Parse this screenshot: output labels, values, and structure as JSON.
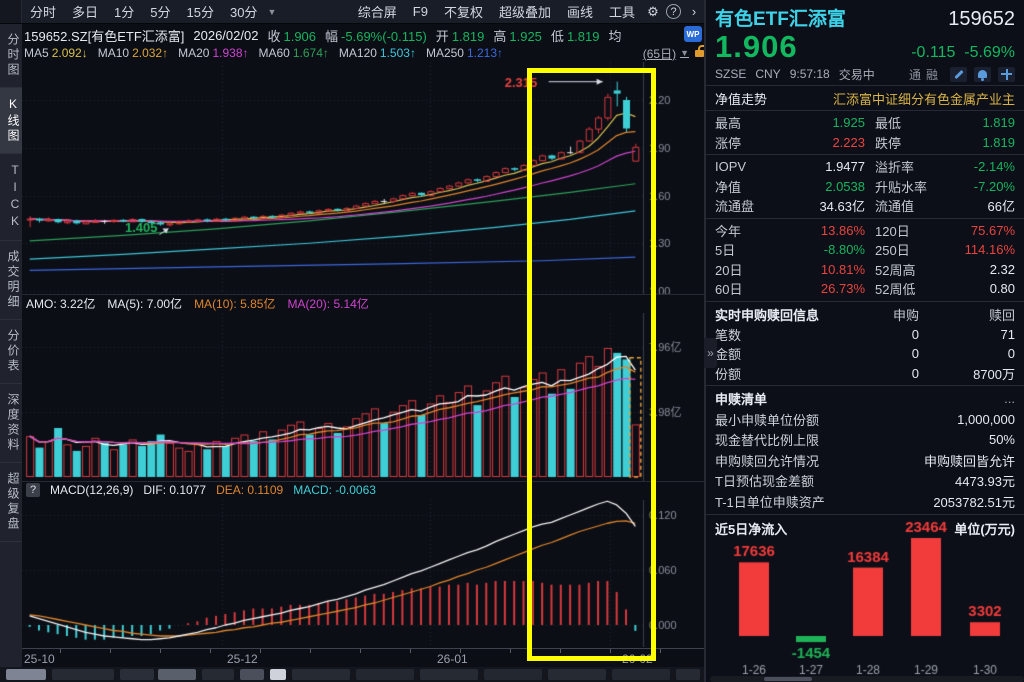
{
  "toolbar": {
    "tabs": [
      "分时",
      "多日",
      "1分",
      "5分",
      "15分",
      "30分"
    ],
    "dropdown_icon": "▼",
    "right_items": [
      "综合屏",
      "F9",
      "不复权",
      "超级叠加",
      "画线",
      "工具"
    ],
    "gear_icon": "⚙",
    "help_icon": "?",
    "expand_icon": "›"
  },
  "info_bar": {
    "symbol": "159652.SZ[有色ETF汇添富]",
    "date": "2026/02/02",
    "fields": [
      {
        "label": "收",
        "value": "1.906",
        "color": "grn"
      },
      {
        "label": "幅",
        "value": "-5.69%(-0.115)",
        "color": "grn"
      },
      {
        "label": "开",
        "value": "1.819",
        "color": "grn"
      },
      {
        "label": "高",
        "value": "1.925",
        "color": "grn"
      },
      {
        "label": "低",
        "value": "1.819",
        "color": "grn"
      },
      {
        "label": "均",
        "value": "",
        "color": "wht"
      }
    ],
    "wp_badge": "WP"
  },
  "ma_bar": {
    "items": [
      {
        "label": "MA5",
        "value": "2.092",
        "arrow": "↓",
        "color": "#d8c050"
      },
      {
        "label": "MA10",
        "value": "2.032",
        "arrow": "↑",
        "color": "#dca43c"
      },
      {
        "label": "MA20",
        "value": "1.938",
        "arrow": "↑",
        "color": "#d044d0"
      },
      {
        "label": "MA60",
        "value": "1.674",
        "arrow": "↑",
        "color": "#2fa05a"
      },
      {
        "label": "MA120",
        "value": "1.503",
        "arrow": "↑",
        "color": "#3fc6da"
      },
      {
        "label": "MA250",
        "value": "1.213",
        "arrow": "↑",
        "color": "#3e68e0"
      }
    ],
    "period": "(65日)",
    "period_caret": "▼"
  },
  "sidebar": {
    "items": [
      {
        "label": "分时图",
        "active": false
      },
      {
        "label": "K线图",
        "active": true
      },
      {
        "label": "TICK",
        "active": false
      },
      {
        "label": "成交明细",
        "active": false
      },
      {
        "label": "分价表",
        "active": false
      },
      {
        "label": "深度资料",
        "active": false
      },
      {
        "label": "超级复盘",
        "active": false
      }
    ]
  },
  "amo_bar": {
    "fields": [
      {
        "text": "AMO: 3.22亿",
        "color": "#e6e9f0"
      },
      {
        "text": "MA(5): 7.00亿",
        "color": "#e6e9f0"
      },
      {
        "text": "MA(10): 5.85亿",
        "color": "#e0852c"
      },
      {
        "text": "MA(20): 5.14亿",
        "color": "#cf44cf"
      }
    ]
  },
  "macd_bar": {
    "help_icon": "?",
    "fields": [
      {
        "text": "MACD(12,26,9)",
        "color": "#e6e9f0"
      },
      {
        "text": "DIF: 0.1077",
        "color": "#e6e9f0"
      },
      {
        "text": "DEA: 0.1109",
        "color": "#e0852c"
      },
      {
        "text": "MACD: -0.0063",
        "color": "#3ecfd6"
      }
    ]
  },
  "chart_data": [
    {
      "type": "candlestick",
      "name": "kline",
      "title": "159652.SZ 有色ETF汇添富 日K线",
      "y_ticks": [
        {
          "label": "2.20",
          "value": 2.2
        },
        {
          "label": "1.90",
          "value": 1.9
        },
        {
          "label": "1.60",
          "value": 1.6
        },
        {
          "label": "1.30",
          "value": 1.3
        },
        {
          "label": "1.00",
          "value": 1.0
        }
      ],
      "x_labels": [
        {
          "label": "25-10",
          "x": 2
        },
        {
          "label": "25-12",
          "x": 205
        },
        {
          "label": "26-01",
          "x": 415
        },
        {
          "label": "26-02",
          "x": 600
        }
      ],
      "v_grid_x": [
        200,
        408,
        588
      ],
      "annotations": [
        {
          "text": "2.315",
          "price": 2.315,
          "idx": 63,
          "color": "#e8433f",
          "dir": "right"
        },
        {
          "text": "1.405",
          "price": 1.405,
          "idx": 15,
          "color": "#20b45c",
          "dir": "upright"
        }
      ],
      "candles": [
        [
          1.45,
          1.47,
          1.4,
          1.455
        ],
        [
          1.455,
          1.46,
          1.43,
          1.443
        ],
        [
          1.443,
          1.462,
          1.438,
          1.452
        ],
        [
          1.452,
          1.455,
          1.425,
          1.432
        ],
        [
          1.432,
          1.45,
          1.42,
          1.442
        ],
        [
          1.442,
          1.448,
          1.418,
          1.425
        ],
        [
          1.425,
          1.445,
          1.42,
          1.437
        ],
        [
          1.437,
          1.452,
          1.43,
          1.44
        ],
        [
          1.44,
          1.447,
          1.422,
          1.44
        ],
        [
          1.44,
          1.452,
          1.428,
          1.447
        ],
        [
          1.447,
          1.452,
          1.432,
          1.438
        ],
        [
          1.438,
          1.458,
          1.435,
          1.452
        ],
        [
          1.452,
          1.456,
          1.428,
          1.436
        ],
        [
          1.436,
          1.445,
          1.418,
          1.43
        ],
        [
          1.43,
          1.44,
          1.41,
          1.418
        ],
        [
          1.422,
          1.432,
          1.405,
          1.425
        ],
        [
          1.425,
          1.442,
          1.418,
          1.437
        ],
        [
          1.437,
          1.45,
          1.43,
          1.443
        ],
        [
          1.443,
          1.455,
          1.437,
          1.45
        ],
        [
          1.45,
          1.456,
          1.432,
          1.44
        ],
        [
          1.44,
          1.46,
          1.436,
          1.454
        ],
        [
          1.454,
          1.46,
          1.44,
          1.447
        ],
        [
          1.447,
          1.465,
          1.443,
          1.46
        ],
        [
          1.46,
          1.472,
          1.452,
          1.467
        ],
        [
          1.467,
          1.47,
          1.45,
          1.458
        ],
        [
          1.458,
          1.478,
          1.455,
          1.472
        ],
        [
          1.472,
          1.476,
          1.458,
          1.465
        ],
        [
          1.465,
          1.485,
          1.462,
          1.48
        ],
        [
          1.48,
          1.496,
          1.475,
          1.492
        ],
        [
          1.492,
          1.505,
          1.487,
          1.5
        ],
        [
          1.5,
          1.505,
          1.485,
          1.492
        ],
        [
          1.492,
          1.512,
          1.488,
          1.507
        ],
        [
          1.507,
          1.52,
          1.5,
          1.516
        ],
        [
          1.516,
          1.52,
          1.5,
          1.508
        ],
        [
          1.508,
          1.527,
          1.505,
          1.522
        ],
        [
          1.522,
          1.542,
          1.518,
          1.537
        ],
        [
          1.537,
          1.557,
          1.532,
          1.552
        ],
        [
          1.552,
          1.572,
          1.548,
          1.566
        ],
        [
          1.566,
          1.578,
          1.548,
          1.566
        ],
        [
          1.566,
          1.587,
          1.552,
          1.582
        ],
        [
          1.582,
          1.607,
          1.578,
          1.602
        ],
        [
          1.602,
          1.622,
          1.596,
          1.617
        ],
        [
          1.617,
          1.62,
          1.592,
          1.602
        ],
        [
          1.602,
          1.632,
          1.598,
          1.627
        ],
        [
          1.627,
          1.652,
          1.622,
          1.647
        ],
        [
          1.647,
          1.667,
          1.64,
          1.662
        ],
        [
          1.662,
          1.687,
          1.657,
          1.682
        ],
        [
          1.682,
          1.707,
          1.677,
          1.702
        ],
        [
          1.702,
          1.707,
          1.682,
          1.692
        ],
        [
          1.692,
          1.727,
          1.688,
          1.722
        ],
        [
          1.722,
          1.752,
          1.717,
          1.747
        ],
        [
          1.747,
          1.777,
          1.742,
          1.772
        ],
        [
          1.772,
          1.777,
          1.752,
          1.762
        ],
        [
          1.762,
          1.797,
          1.758,
          1.792
        ],
        [
          1.792,
          1.827,
          1.787,
          1.822
        ],
        [
          1.822,
          1.857,
          1.817,
          1.852
        ],
        [
          1.852,
          1.857,
          1.822,
          1.832
        ],
        [
          1.832,
          1.877,
          1.827,
          1.872
        ],
        [
          1.872,
          1.907,
          1.86,
          1.872
        ],
        [
          1.872,
          1.95,
          1.868,
          1.945
        ],
        [
          1.945,
          2.03,
          1.94,
          2.02
        ],
        [
          2.02,
          2.1,
          1.99,
          2.09
        ],
        [
          2.09,
          2.24,
          2.07,
          2.22
        ],
        [
          2.26,
          2.315,
          2.16,
          2.24
        ],
        [
          2.2,
          2.22,
          2.0,
          2.021
        ],
        [
          1.819,
          1.925,
          1.819,
          1.906
        ]
      ],
      "ma_overlays": [
        {
          "name": "MA60",
          "color": "#2fa05a",
          "points": [
            [
              0,
              1.315
            ],
            [
              10,
              1.35
            ],
            [
              20,
              1.39
            ],
            [
              30,
              1.44
            ],
            [
              40,
              1.5
            ],
            [
              50,
              1.565
            ],
            [
              58,
              1.62
            ],
            [
              65,
              1.674
            ]
          ]
        },
        {
          "name": "MA120",
          "color": "#3fc6da",
          "points": [
            [
              0,
              1.2
            ],
            [
              10,
              1.23
            ],
            [
              20,
              1.265
            ],
            [
              30,
              1.3
            ],
            [
              40,
              1.345
            ],
            [
              50,
              1.4
            ],
            [
              58,
              1.45
            ],
            [
              65,
              1.503
            ]
          ]
        },
        {
          "name": "MA250",
          "color": "#3e68e0",
          "points": [
            [
              0,
              1.13
            ],
            [
              20,
              1.152
            ],
            [
              40,
              1.172
            ],
            [
              55,
              1.19
            ],
            [
              65,
              1.213
            ]
          ]
        }
      ]
    },
    {
      "type": "bar",
      "name": "volume",
      "title": "成交额",
      "y_ticks": [
        {
          "label": "7.96亿",
          "value": 7.96
        },
        {
          "label": "3.98亿",
          "value": 3.98
        }
      ],
      "v_grid_x": [
        200,
        408,
        588
      ],
      "values": [
        2.5,
        1.8,
        2.2,
        3.0,
        2.0,
        1.6,
        1.9,
        2.4,
        2.1,
        1.7,
        2.0,
        2.3,
        1.9,
        2.2,
        2.6,
        2.1,
        1.8,
        1.6,
        2.0,
        1.7,
        2.2,
        1.9,
        2.4,
        2.6,
        2.2,
        2.8,
        2.3,
        2.9,
        3.2,
        3.4,
        2.6,
        3.0,
        3.3,
        2.7,
        3.1,
        3.6,
        3.9,
        4.2,
        3.3,
        4.0,
        4.4,
        4.7,
        3.8,
        4.5,
        5.0,
        4.6,
        5.2,
        5.6,
        4.4,
        5.3,
        5.8,
        6.2,
        4.9,
        5.5,
        6.0,
        6.4,
        5.1,
        6.6,
        5.4,
        7.0,
        7.4,
        6.8,
        7.9,
        7.6,
        7.2,
        3.22
      ],
      "forecast_box": {
        "idx": 65,
        "value": 7.3,
        "color": "#e8a23a"
      }
    },
    {
      "type": "line+bar",
      "name": "macd",
      "title": "MACD(12,26,9)",
      "y_ticks": [
        {
          "label": "0.120",
          "value": 0.12
        },
        {
          "label": "0.060",
          "value": 0.06
        },
        {
          "label": "0.000",
          "value": 0.0
        }
      ],
      "v_grid_x": [
        200,
        408,
        588
      ],
      "dif": [
        0.01,
        0.007,
        0.004,
        0.001,
        -0.002,
        -0.005,
        -0.008,
        -0.01,
        -0.012,
        -0.013,
        -0.014,
        -0.015,
        -0.016,
        -0.016,
        -0.015,
        -0.014,
        -0.012,
        -0.01,
        -0.008,
        -0.005,
        -0.003,
        0.0,
        0.002,
        0.005,
        0.007,
        0.009,
        0.011,
        0.013,
        0.016,
        0.018,
        0.02,
        0.023,
        0.026,
        0.028,
        0.031,
        0.034,
        0.038,
        0.041,
        0.044,
        0.048,
        0.052,
        0.056,
        0.059,
        0.063,
        0.067,
        0.071,
        0.075,
        0.079,
        0.082,
        0.086,
        0.091,
        0.095,
        0.099,
        0.103,
        0.107,
        0.11,
        0.112,
        0.116,
        0.12,
        0.124,
        0.128,
        0.132,
        0.135,
        0.131,
        0.122,
        0.1077
      ],
      "dea": [
        0.011,
        0.01,
        0.008,
        0.006,
        0.004,
        0.002,
        0.0,
        -0.002,
        -0.004,
        -0.006,
        -0.007,
        -0.009,
        -0.01,
        -0.011,
        -0.012,
        -0.012,
        -0.012,
        -0.011,
        -0.01,
        -0.009,
        -0.008,
        -0.006,
        -0.005,
        -0.003,
        -0.002,
        0.0,
        0.002,
        0.003,
        0.005,
        0.007,
        0.009,
        0.011,
        0.013,
        0.015,
        0.017,
        0.019,
        0.022,
        0.024,
        0.027,
        0.03,
        0.033,
        0.036,
        0.039,
        0.042,
        0.046,
        0.049,
        0.053,
        0.056,
        0.06,
        0.063,
        0.067,
        0.071,
        0.075,
        0.079,
        0.083,
        0.087,
        0.09,
        0.094,
        0.098,
        0.102,
        0.105,
        0.108,
        0.111,
        0.113,
        0.1135,
        0.1109
      ]
    },
    {
      "type": "bar",
      "name": "net_inflow",
      "title": "近5日净流入",
      "ylabel": "单位(万元)",
      "categories": [
        "1-26",
        "1-27",
        "1-28",
        "1-29",
        "1-30"
      ],
      "values": [
        17636,
        -1454,
        16384,
        23464,
        3302
      ],
      "bar_colors": {
        "positive": "#f23b3b",
        "negative": "#1fb358"
      }
    }
  ],
  "quote_panel": {
    "name": "有色ETF汇添富",
    "code": "159652",
    "price": "1.906",
    "change": "-0.115",
    "change_pct": "-5.69%",
    "exchange": "SZSE",
    "currency": "CNY",
    "time": "9:57:18",
    "status": "交易中",
    "tags": [
      "通",
      "融"
    ],
    "nav_row": {
      "label": "净值走势",
      "value": "汇添富中证细分有色金属产业主"
    },
    "stat_rows": [
      {
        "l1": "最高",
        "v1": "1.925",
        "c1": "grn",
        "l2": "最低",
        "v2": "1.819",
        "c2": "grn",
        "sep_after": false
      },
      {
        "l1": "涨停",
        "v1": "2.223",
        "c1": "red",
        "l2": "跌停",
        "v2": "1.819",
        "c2": "grn",
        "sep_after": true
      },
      {
        "l1": "IOPV",
        "v1": "1.9477",
        "c1": "wht",
        "l2": "溢折率",
        "v2": "-2.14%",
        "c2": "grn",
        "sep_after": false
      },
      {
        "l1": "净值",
        "v1": "2.0538",
        "c1": "grn",
        "l2": "升贴水率",
        "v2": "-7.20%",
        "c2": "grn",
        "sep_after": false
      },
      {
        "l1": "流通盘",
        "v1": "34.63亿",
        "c1": "wht",
        "l2": "流通值",
        "v2": "66亿",
        "c2": "wht",
        "sep_after": true
      },
      {
        "l1": "今年",
        "v1": "13.86%",
        "c1": "red",
        "l2": "120日",
        "v2": "75.67%",
        "c2": "red",
        "sep_after": false
      },
      {
        "l1": "5日",
        "v1": "-8.80%",
        "c1": "grn",
        "l2": "250日",
        "v2": "114.16%",
        "c2": "red",
        "sep_after": false
      },
      {
        "l1": "20日",
        "v1": "10.81%",
        "c1": "red",
        "l2": "52周高",
        "v2": "2.32",
        "c2": "wht",
        "sep_after": false
      },
      {
        "l1": "60日",
        "v1": "26.73%",
        "c1": "red",
        "l2": "52周低",
        "v2": "0.80",
        "c2": "wht",
        "sep_after": true
      }
    ],
    "subscription": {
      "header": "实时申购赎回信息",
      "col_purchase": "申购",
      "col_redeem": "赎回",
      "rows": [
        {
          "label": "笔数",
          "purchase": "0",
          "redeem": "71"
        },
        {
          "label": "金额",
          "purchase": "0",
          "redeem": "0"
        },
        {
          "label": "份额",
          "purchase": "0",
          "redeem": "8700万"
        }
      ]
    },
    "redemption_list": {
      "header": "申赎清单",
      "more": "...",
      "rows": [
        {
          "label": "最小申赎单位份额",
          "value": "1,000,000"
        },
        {
          "label": "现金替代比例上限",
          "value": "50%"
        },
        {
          "label": "申购赎回允许情况",
          "value": "申购赎回皆允许"
        },
        {
          "label": "T日预估现金差额",
          "value": "4473.93元"
        },
        {
          "label": "T-1日单位申赎资产",
          "value": "2053782.51元"
        }
      ]
    },
    "collapse_icon": "»"
  },
  "colors": {
    "up_red": "#d8393e",
    "down_cyan": "#3ecfd6",
    "flat_white": "#e8e8e8",
    "accent_yellow": "#ffff00",
    "grid": "#343a46",
    "axis_text": "#8a8f9c",
    "ma5": "#d8c050",
    "ma10": "#e0852c",
    "ma20": "#cf44cf",
    "vol_ma5": "#ffffff"
  }
}
